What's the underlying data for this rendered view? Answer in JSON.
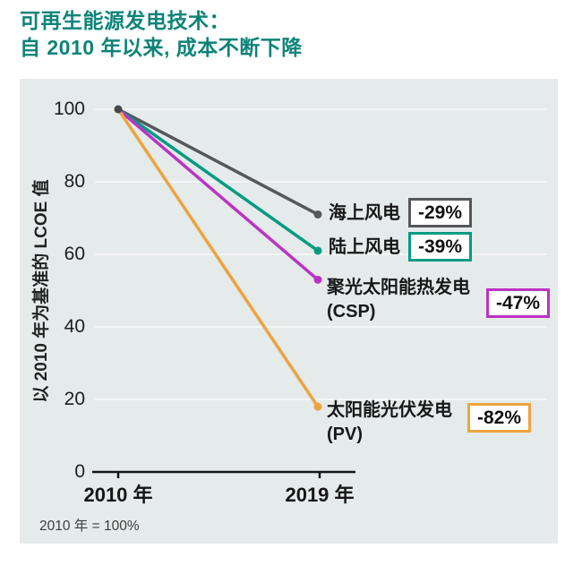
{
  "title": {
    "line1": "可再生能源发电技术：",
    "line2": "自 2010 年以来, 成本不断下降",
    "color": "#0e8478"
  },
  "chart_data": {
    "type": "line",
    "subtype": "slopegraph",
    "x_labels": [
      "2010 年",
      "2019 年"
    ],
    "ylabel": "以 2010 年为基准的 LCOE 值",
    "yticks": [
      0,
      20,
      40,
      60,
      80,
      100
    ],
    "ylim": [
      0,
      100
    ],
    "grid": true,
    "legend_position": "right-of-line-endpoints",
    "series": [
      {
        "name": "海上风电",
        "code": "",
        "change": "-29%",
        "color": "#55585a",
        "values": [
          100,
          71
        ]
      },
      {
        "name": "陆上风电",
        "code": "",
        "change": "-39%",
        "color": "#009b82",
        "values": [
          100,
          61
        ]
      },
      {
        "name": "聚光太阳能热发电",
        "code": "(CSP)",
        "change": "-47%",
        "color": "#bb33c4",
        "values": [
          100,
          53
        ]
      },
      {
        "name": "太阳能光伏发电",
        "code": "(PV)",
        "change": "-82%",
        "color": "#eda43f",
        "values": [
          100,
          18
        ]
      }
    ],
    "footnote": "2010 年 = 100%"
  }
}
